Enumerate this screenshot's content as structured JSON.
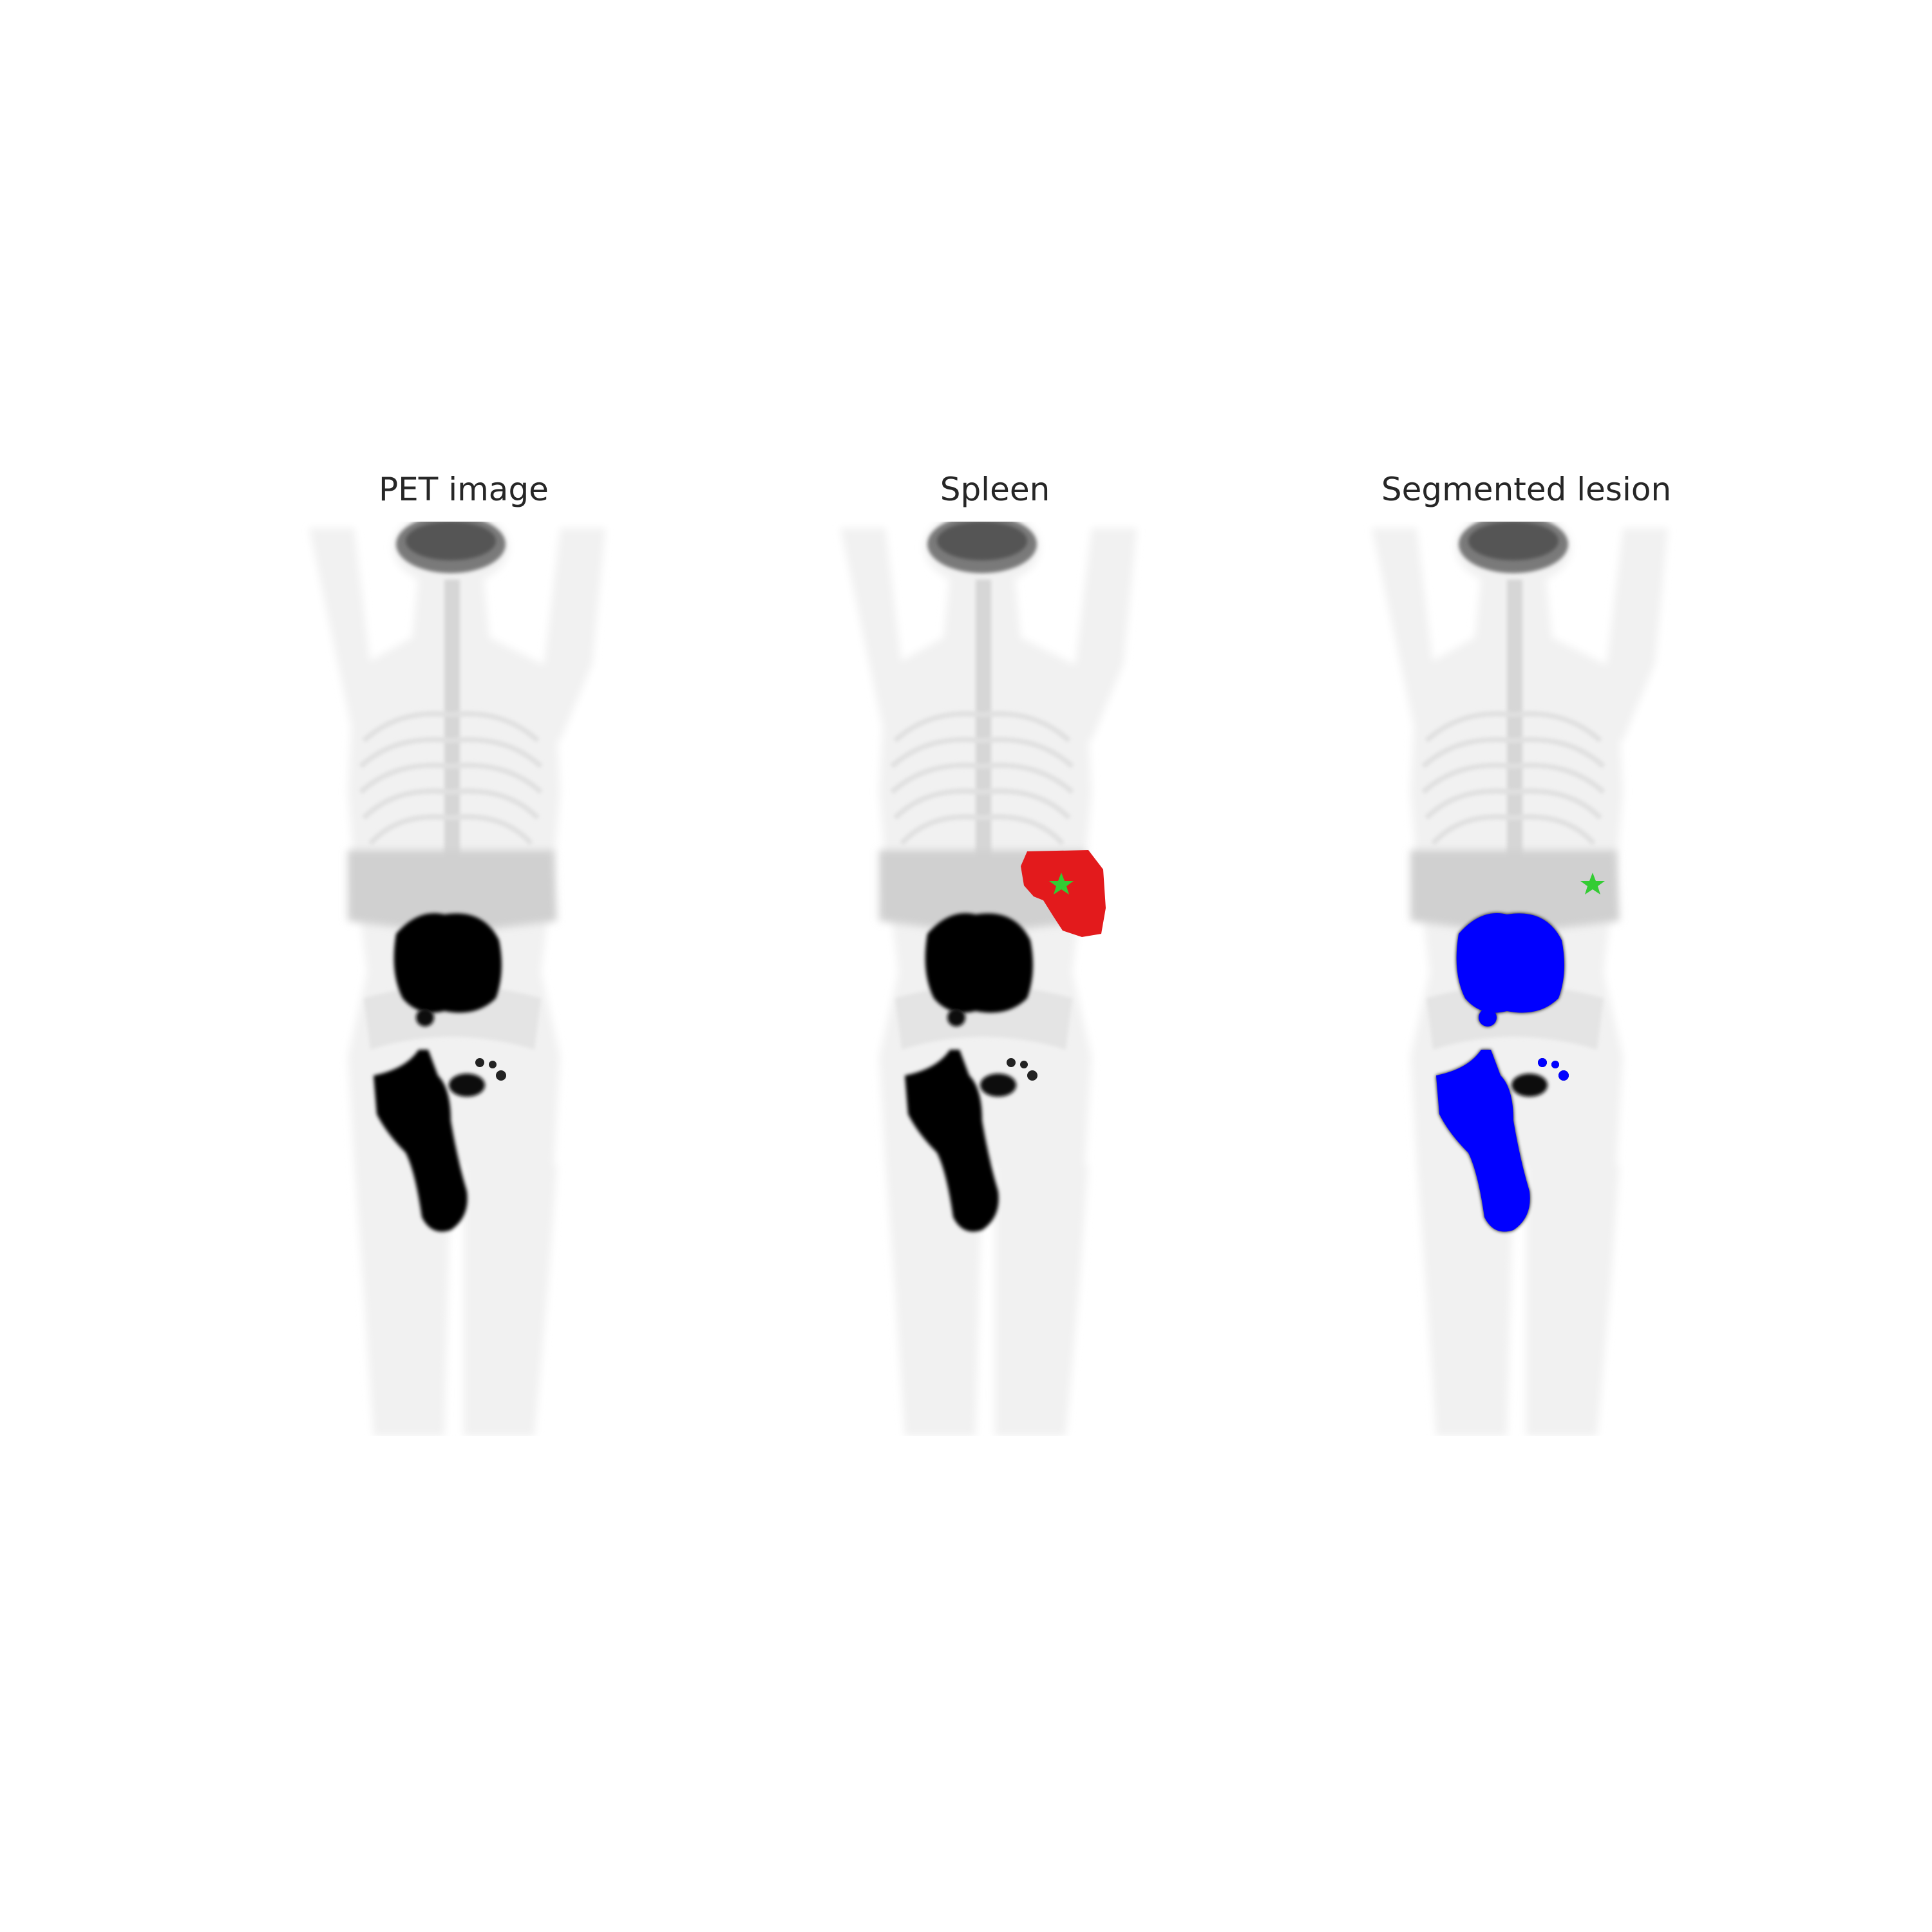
{
  "figure": {
    "panels": [
      {
        "title": "PET image",
        "overlay": "none"
      },
      {
        "title": "Spleen",
        "overlay": "spleen-mask"
      },
      {
        "title": "Segmented lesion",
        "overlay": "lesion-mask"
      }
    ],
    "colors": {
      "spleen_mask": "#e31a1c",
      "lesion_mask": "#0000ff",
      "marker_star": "#33cc33",
      "uptake": "#000000",
      "tissue": "#dcdcdc"
    },
    "marker": "star-icon"
  }
}
